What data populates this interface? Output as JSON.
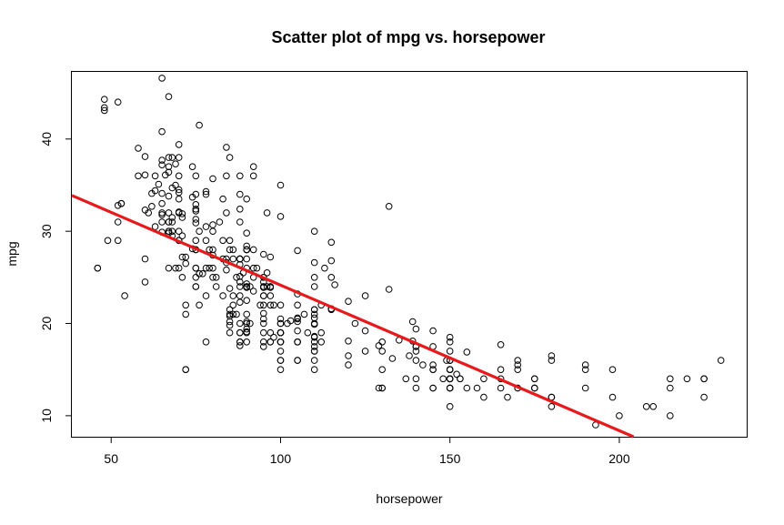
{
  "chart_data": {
    "type": "scatter",
    "title": "Scatter plot of mpg vs. horsepower",
    "xlabel": "horsepower",
    "ylabel": "mpg",
    "xlim": [
      38.4,
      237.6
    ],
    "ylim": [
      7.72,
      47.28
    ],
    "xticks": [
      50,
      100,
      150,
      200
    ],
    "yticks": [
      10,
      20,
      30,
      40
    ],
    "grid": false,
    "legend": "none",
    "marker": "open-circle",
    "point_color": "#000000",
    "fit_line": {
      "color": "#e8191a",
      "intercept": 39.94,
      "slope": -0.1578
    },
    "points": [
      [
        130,
        18
      ],
      [
        165,
        15
      ],
      [
        150,
        18
      ],
      [
        150,
        16
      ],
      [
        140,
        17
      ],
      [
        198,
        15
      ],
      [
        220,
        14
      ],
      [
        215,
        14
      ],
      [
        225,
        14
      ],
      [
        190,
        15
      ],
      [
        170,
        15
      ],
      [
        160,
        14
      ],
      [
        150,
        15
      ],
      [
        225,
        14
      ],
      [
        95,
        24
      ],
      [
        95,
        22
      ],
      [
        97,
        18
      ],
      [
        85,
        21
      ],
      [
        88,
        27
      ],
      [
        46,
        26
      ],
      [
        87,
        25
      ],
      [
        90,
        24
      ],
      [
        95,
        25
      ],
      [
        113,
        26
      ],
      [
        90,
        21
      ],
      [
        215,
        10
      ],
      [
        200,
        10
      ],
      [
        210,
        11
      ],
      [
        193,
        9
      ],
      [
        88,
        27
      ],
      [
        90,
        28
      ],
      [
        95,
        25
      ],
      [
        100,
        19
      ],
      [
        105,
        16
      ],
      [
        100,
        17
      ],
      [
        88,
        19
      ],
      [
        100,
        18
      ],
      [
        165,
        14
      ],
      [
        175,
        14
      ],
      [
        153,
        14
      ],
      [
        150,
        14
      ],
      [
        180,
        12
      ],
      [
        170,
        13
      ],
      [
        175,
        13
      ],
      [
        110,
        18
      ],
      [
        72,
        22
      ],
      [
        100,
        19
      ],
      [
        88,
        18
      ],
      [
        86,
        23
      ],
      [
        90,
        28
      ],
      [
        70,
        30
      ],
      [
        76,
        30
      ],
      [
        65,
        31
      ],
      [
        69,
        35
      ],
      [
        60,
        27
      ],
      [
        70,
        26
      ],
      [
        95,
        24
      ],
      [
        80,
        25
      ],
      [
        54,
        23
      ],
      [
        90,
        20
      ],
      [
        86,
        21
      ],
      [
        165,
        13
      ],
      [
        175,
        14
      ],
      [
        150,
        15
      ],
      [
        153,
        14
      ],
      [
        150,
        17
      ],
      [
        208,
        11
      ],
      [
        155,
        13
      ],
      [
        160,
        12
      ],
      [
        190,
        13
      ],
      [
        97,
        19
      ],
      [
        150,
        15
      ],
      [
        130,
        13
      ],
      [
        140,
        13
      ],
      [
        150,
        14
      ],
      [
        112,
        18
      ],
      [
        76,
        22
      ],
      [
        87,
        21
      ],
      [
        69,
        26
      ],
      [
        86,
        22
      ],
      [
        92,
        28
      ],
      [
        97,
        23
      ],
      [
        80,
        28
      ],
      [
        88,
        27
      ],
      [
        175,
        13
      ],
      [
        150,
        14
      ],
      [
        145,
        13
      ],
      [
        137,
        14
      ],
      [
        150,
        15
      ],
      [
        198,
        12
      ],
      [
        150,
        13
      ],
      [
        158,
        13
      ],
      [
        150,
        14
      ],
      [
        215,
        13
      ],
      [
        225,
        12
      ],
      [
        175,
        13
      ],
      [
        105,
        18
      ],
      [
        100,
        16
      ],
      [
        100,
        18
      ],
      [
        88,
        18
      ],
      [
        95,
        23
      ],
      [
        46,
        26
      ],
      [
        150,
        11
      ],
      [
        167,
        12
      ],
      [
        170,
        13
      ],
      [
        180,
        12
      ],
      [
        100,
        18
      ],
      [
        88,
        20
      ],
      [
        72,
        21
      ],
      [
        94,
        22
      ],
      [
        90,
        18
      ],
      [
        85,
        19
      ],
      [
        107,
        21
      ],
      [
        90,
        26
      ],
      [
        145,
        15
      ],
      [
        230,
        16
      ],
      [
        49,
        29
      ],
      [
        75,
        24
      ],
      [
        91,
        20
      ],
      [
        112,
        19
      ],
      [
        150,
        15
      ],
      [
        110,
        24
      ],
      [
        122,
        20
      ],
      [
        180,
        11
      ],
      [
        95,
        20
      ],
      [
        100,
        19
      ],
      [
        100,
        15
      ],
      [
        67,
        31
      ],
      [
        80,
        26
      ],
      [
        65,
        32
      ],
      [
        75,
        25
      ],
      [
        100,
        16
      ],
      [
        110,
        16
      ],
      [
        105,
        18
      ],
      [
        140,
        16
      ],
      [
        150,
        13
      ],
      [
        150,
        14
      ],
      [
        140,
        14
      ],
      [
        150,
        14
      ],
      [
        83,
        29
      ],
      [
        67,
        26
      ],
      [
        78,
        26
      ],
      [
        52,
        31
      ],
      [
        61,
        32
      ],
      [
        75,
        28
      ],
      [
        75,
        24
      ],
      [
        75,
        26
      ],
      [
        97,
        24
      ],
      [
        93,
        26
      ],
      [
        67,
        31
      ],
      [
        95,
        19
      ],
      [
        105,
        18
      ],
      [
        72,
        15
      ],
      [
        72,
        15
      ],
      [
        170,
        16
      ],
      [
        145,
        15
      ],
      [
        150,
        16
      ],
      [
        148,
        14
      ],
      [
        110,
        17
      ],
      [
        105,
        16
      ],
      [
        110,
        15
      ],
      [
        95,
        18
      ],
      [
        110,
        21
      ],
      [
        110,
        20
      ],
      [
        129,
        13
      ],
      [
        75,
        29
      ],
      [
        83,
        23
      ],
      [
        100,
        20
      ],
      [
        78,
        23
      ],
      [
        96,
        24
      ],
      [
        71,
        25
      ],
      [
        97,
        24
      ],
      [
        97,
        18
      ],
      [
        70,
        29
      ],
      [
        90,
        19
      ],
      [
        95,
        23
      ],
      [
        88,
        23
      ],
      [
        98,
        22
      ],
      [
        115,
        25
      ],
      [
        53,
        33
      ],
      [
        86,
        28
      ],
      [
        81,
        25
      ],
      [
        92,
        25
      ],
      [
        79,
        26
      ],
      [
        83,
        27
      ],
      [
        140,
        17.5
      ],
      [
        150,
        16
      ],
      [
        120,
        15.5
      ],
      [
        152,
        14.5
      ],
      [
        100,
        22
      ],
      [
        105,
        22
      ],
      [
        81,
        24
      ],
      [
        90,
        22.5
      ],
      [
        52,
        29
      ],
      [
        60,
        24.5
      ],
      [
        70,
        29
      ],
      [
        53,
        33
      ],
      [
        100,
        20
      ],
      [
        78,
        18
      ],
      [
        110,
        18.5
      ],
      [
        95,
        17.5
      ],
      [
        71,
        29.5
      ],
      [
        70,
        32
      ],
      [
        75,
        28
      ],
      [
        72,
        26.5
      ],
      [
        102,
        20
      ],
      [
        150,
        13
      ],
      [
        88,
        19
      ],
      [
        108,
        19
      ],
      [
        120,
        16.5
      ],
      [
        180,
        16.5
      ],
      [
        145,
        13
      ],
      [
        130,
        13
      ],
      [
        150,
        13
      ],
      [
        68,
        31.5
      ],
      [
        80,
        30
      ],
      [
        58,
        36
      ],
      [
        96,
        25.5
      ],
      [
        70,
        33.5
      ],
      [
        145,
        17.5
      ],
      [
        110,
        17
      ],
      [
        145,
        15.5
      ],
      [
        130,
        15
      ],
      [
        110,
        17.5
      ],
      [
        105,
        20.5
      ],
      [
        100,
        19
      ],
      [
        98,
        18.5
      ],
      [
        180,
        16
      ],
      [
        170,
        15.5
      ],
      [
        190,
        15.5
      ],
      [
        149,
        16
      ],
      [
        78,
        29
      ],
      [
        88,
        24.5
      ],
      [
        75,
        26
      ],
      [
        89,
        25.5
      ],
      [
        63,
        30.5
      ],
      [
        83,
        33.5
      ],
      [
        67,
        30
      ],
      [
        78,
        30.5
      ],
      [
        97,
        22
      ],
      [
        110,
        21.5
      ],
      [
        110,
        21.5
      ],
      [
        48,
        43.1
      ],
      [
        66,
        36.1
      ],
      [
        52,
        32.8
      ],
      [
        70,
        39.4
      ],
      [
        60,
        36.1
      ],
      [
        110,
        19.9
      ],
      [
        140,
        19.4
      ],
      [
        139,
        20.2
      ],
      [
        105,
        19.2
      ],
      [
        95,
        20.5
      ],
      [
        85,
        20.2
      ],
      [
        88,
        25.1
      ],
      [
        100,
        20.5
      ],
      [
        90,
        19.4
      ],
      [
        105,
        20.6
      ],
      [
        85,
        20.8
      ],
      [
        110,
        18.6
      ],
      [
        120,
        18.1
      ],
      [
        145,
        19.2
      ],
      [
        165,
        17.7
      ],
      [
        139,
        18.1
      ],
      [
        140,
        17.5
      ],
      [
        68,
        30
      ],
      [
        95,
        27.5
      ],
      [
        97,
        27.2
      ],
      [
        75,
        30.9
      ],
      [
        95,
        21.1
      ],
      [
        105,
        23.2
      ],
      [
        85,
        23.8
      ],
      [
        97,
        23.9
      ],
      [
        103,
        20.3
      ],
      [
        125,
        17
      ],
      [
        115,
        21.6
      ],
      [
        133,
        16.2
      ],
      [
        71,
        31.5
      ],
      [
        68,
        29.5
      ],
      [
        115,
        21.5
      ],
      [
        85,
        19.8
      ],
      [
        88,
        22.3
      ],
      [
        90,
        20.2
      ],
      [
        110,
        20.6
      ],
      [
        130,
        17
      ],
      [
        129,
        17.6
      ],
      [
        138,
        16.5
      ],
      [
        135,
        18.2
      ],
      [
        155,
        16.9
      ],
      [
        142,
        15.5
      ],
      [
        125,
        19.2
      ],
      [
        150,
        18.5
      ],
      [
        71,
        31.9
      ],
      [
        65,
        34.1
      ],
      [
        80,
        35.7
      ],
      [
        80,
        27.4
      ],
      [
        77,
        25.4
      ],
      [
        125,
        23
      ],
      [
        71,
        27.2
      ],
      [
        90,
        23.9
      ],
      [
        70,
        34.2
      ],
      [
        70,
        34.5
      ],
      [
        65,
        31.8
      ],
      [
        69,
        37.3
      ],
      [
        90,
        28.4
      ],
      [
        115,
        28.8
      ],
      [
        115,
        26.8
      ],
      [
        90,
        33.5
      ],
      [
        76,
        41.5
      ],
      [
        60,
        38.1
      ],
      [
        70,
        32.1
      ],
      [
        65,
        37.2
      ],
      [
        90,
        28
      ],
      [
        88,
        26.4
      ],
      [
        90,
        24.3
      ],
      [
        90,
        19.1
      ],
      [
        78,
        34.3
      ],
      [
        90,
        29.8
      ],
      [
        75,
        31.3
      ],
      [
        92,
        37
      ],
      [
        75,
        32.2
      ],
      [
        65,
        46.6
      ],
      [
        105,
        27.9
      ],
      [
        65,
        40.8
      ],
      [
        48,
        44.3
      ],
      [
        48,
        43.4
      ],
      [
        67,
        36.4
      ],
      [
        67,
        30
      ],
      [
        67,
        44.6
      ],
      [
        67,
        33.8
      ],
      [
        67,
        29.8
      ],
      [
        62,
        32.7
      ],
      [
        132,
        23.7
      ],
      [
        100,
        35
      ],
      [
        88,
        32.4
      ],
      [
        72,
        27.2
      ],
      [
        84,
        26.6
      ],
      [
        84,
        25.8
      ],
      [
        92,
        23.5
      ],
      [
        110,
        30
      ],
      [
        84,
        39.1
      ],
      [
        58,
        39
      ],
      [
        64,
        35.1
      ],
      [
        60,
        32.3
      ],
      [
        67,
        37
      ],
      [
        65,
        37.7
      ],
      [
        62,
        34.1
      ],
      [
        68,
        34.7
      ],
      [
        63,
        34.4
      ],
      [
        65,
        29.9
      ],
      [
        65,
        33
      ],
      [
        74,
        33.7
      ],
      [
        75,
        32.4
      ],
      [
        75,
        32.9
      ],
      [
        100,
        31.6
      ],
      [
        74,
        28.1
      ],
      [
        80,
        30.7
      ],
      [
        76,
        25.4
      ],
      [
        116,
        24.2
      ],
      [
        120,
        22.4
      ],
      [
        110,
        26.6
      ],
      [
        105,
        20.2
      ],
      [
        88,
        17.6
      ],
      [
        85,
        28
      ],
      [
        88,
        27
      ],
      [
        88,
        34
      ],
      [
        88,
        31
      ],
      [
        85,
        29
      ],
      [
        84,
        27
      ],
      [
        90,
        24
      ],
      [
        92,
        36
      ],
      [
        74,
        37
      ],
      [
        68,
        31
      ],
      [
        68,
        38
      ],
      [
        63,
        36
      ],
      [
        70,
        36
      ],
      [
        88,
        36
      ],
      [
        75,
        34
      ],
      [
        70,
        38
      ],
      [
        67,
        32
      ],
      [
        67,
        38
      ],
      [
        110,
        25
      ],
      [
        85,
        38
      ],
      [
        92,
        26
      ],
      [
        112,
        22
      ],
      [
        96,
        32
      ],
      [
        84,
        36
      ],
      [
        90,
        27
      ],
      [
        86,
        27
      ],
      [
        52,
        44
      ],
      [
        84,
        32
      ],
      [
        79,
        28
      ],
      [
        82,
        31
      ],
      [
        132,
        32.7
      ],
      [
        95,
        23.9
      ],
      [
        85,
        21.5
      ],
      [
        91,
        24
      ],
      [
        88,
        24
      ],
      [
        75,
        36
      ],
      [
        78,
        34
      ],
      [
        95,
        24.5
      ]
    ]
  }
}
